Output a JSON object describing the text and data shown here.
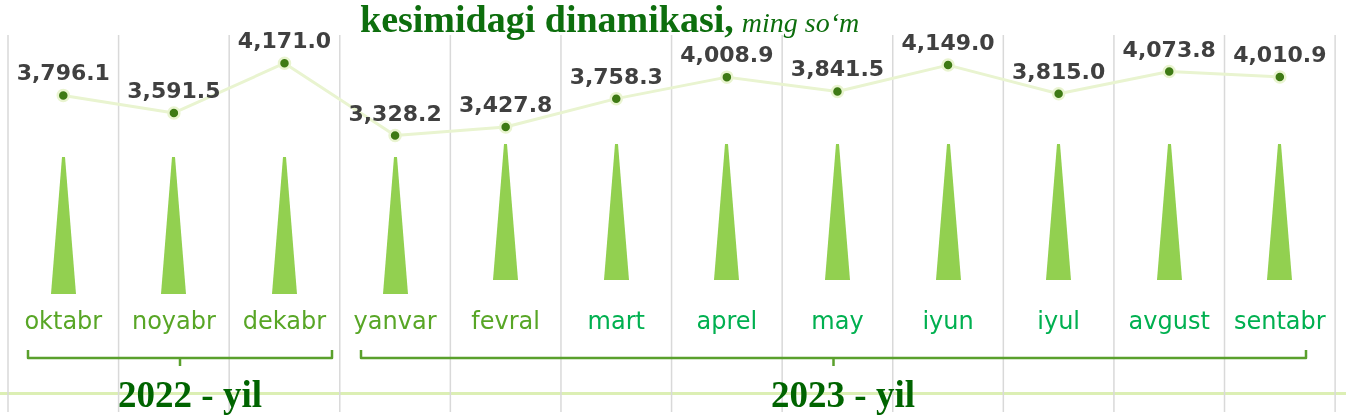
{
  "chart_data": {
    "type": "line",
    "title": "kesimidagi dinamikasi,",
    "subtitle": "ming so‘m",
    "categories": [
      "oktabr",
      "noyabr",
      "dekabr",
      "yanvar",
      "fevral",
      "mart",
      "aprel",
      "may",
      "iyun",
      "iyul",
      "avgust",
      "sentabr"
    ],
    "values": [
      3796.1,
      3591.5,
      4171.0,
      3328.2,
      3427.8,
      3758.3,
      4008.9,
      3841.5,
      4149.0,
      3815.0,
      4073.8,
      4010.9
    ],
    "value_labels": [
      "3,796.1",
      "3,591.5",
      "4,171.0",
      "3,328.2",
      "3,427.8",
      "3,758.3",
      "4,008.9",
      "3,841.5",
      "4,149.0",
      "3,815.0",
      "4,073.8",
      "4,010.9"
    ],
    "color": "#3e7a14",
    "marker": "circle",
    "line_style": "solid",
    "grid": "x",
    "tick_labels": "x",
    "annotations": [
      "2022 - yil",
      "2023 - yil"
    ]
  }
}
